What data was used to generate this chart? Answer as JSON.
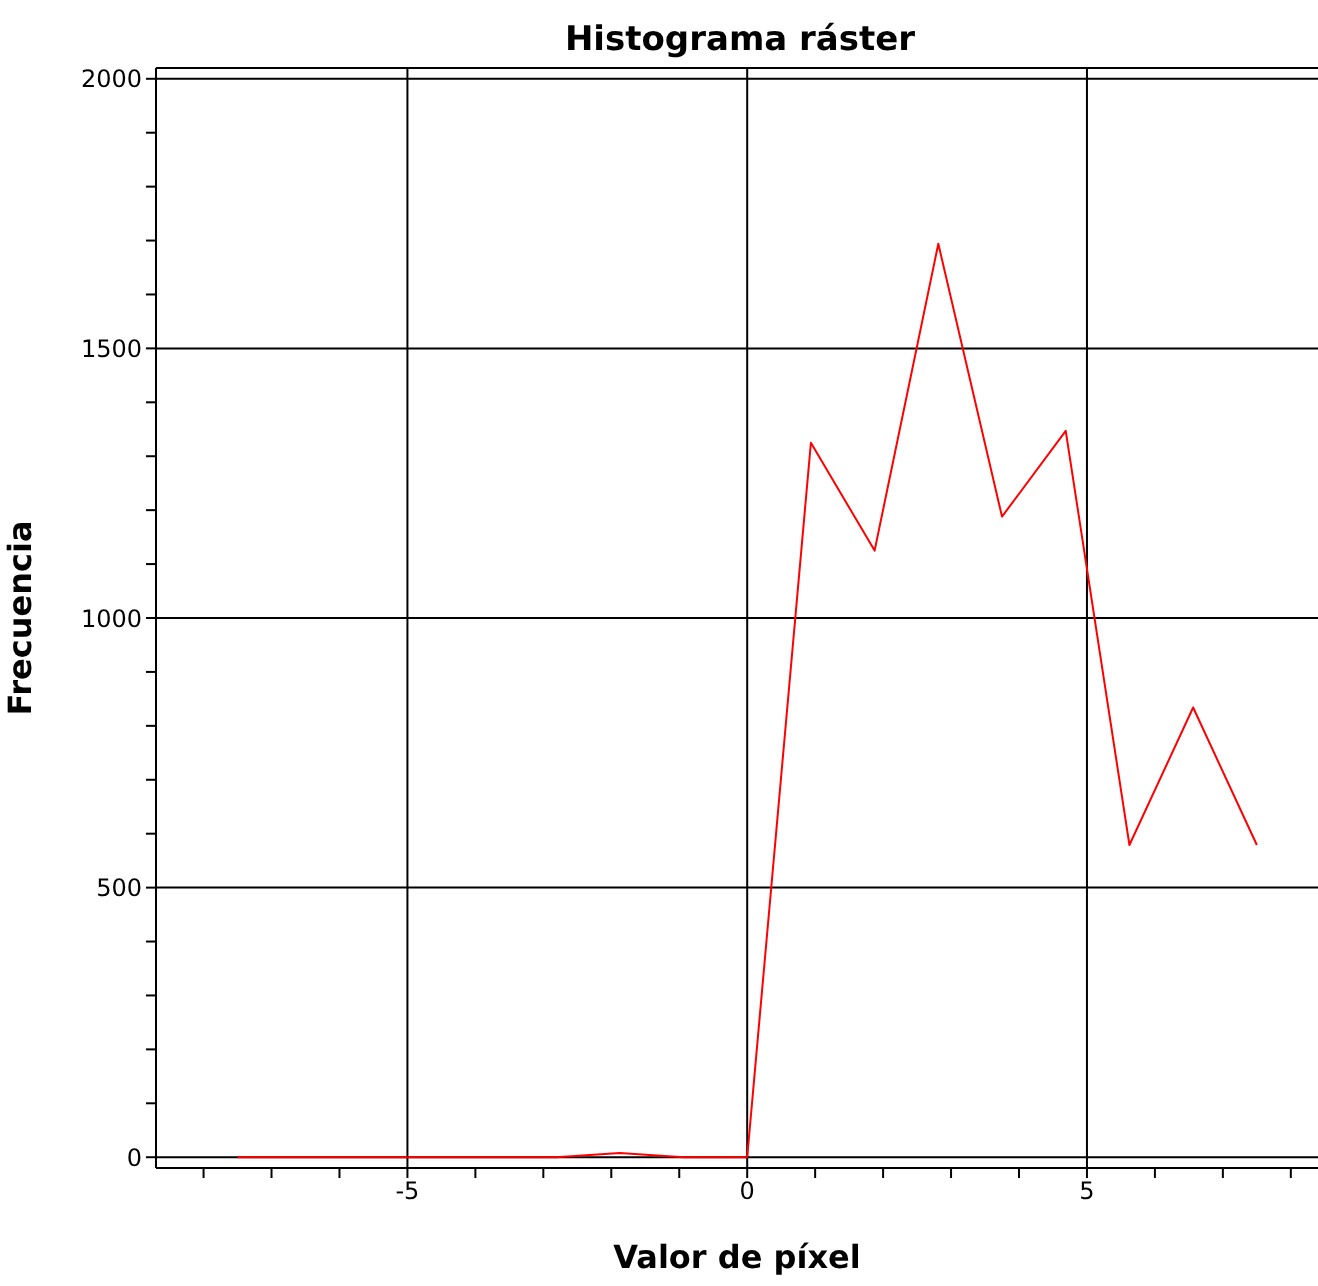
{
  "chart_data": {
    "type": "line",
    "title": "Histograma ráster",
    "xlabel": "Valor de píxel",
    "ylabel": "Frecuencia",
    "x": [
      -7.5,
      -6.5625,
      -5.625,
      -4.6875,
      -3.75,
      -2.8125,
      -1.875,
      -0.9375,
      0,
      0.9375,
      1.875,
      2.8125,
      3.75,
      4.6875,
      5.625,
      6.5625,
      7.5
    ],
    "series": [
      {
        "color": "#ff0000",
        "values": [
          0,
          0,
          0,
          0,
          0,
          0,
          8,
          0,
          0,
          1325,
          1125,
          1694,
          1188,
          1347,
          579,
          834,
          579
        ]
      }
    ],
    "xlim": [
      -8.7,
      8.4
    ],
    "xticks": [
      {
        "value": -8,
        "label": null
      },
      {
        "value": -7,
        "label": null
      },
      {
        "value": -6,
        "label": null
      },
      -5,
      {
        "value": -4,
        "label": null
      },
      {
        "value": -3,
        "label": null
      },
      {
        "value": -2,
        "label": null
      },
      {
        "value": -1,
        "label": null
      },
      0,
      {
        "value": 1,
        "label": null
      },
      {
        "value": 2,
        "label": null
      },
      {
        "value": 3,
        "label": null
      },
      {
        "value": 4,
        "label": null
      },
      5,
      {
        "value": 6,
        "label": null
      },
      {
        "value": 7,
        "label": null
      },
      {
        "value": 8,
        "label": null
      }
    ],
    "ylim": [
      -20,
      2020
    ],
    "yticks": [
      0,
      {
        "value": 100,
        "label": null
      },
      {
        "value": 200,
        "label": null
      },
      {
        "value": 300,
        "label": null
      },
      {
        "value": 400,
        "label": null
      },
      500,
      {
        "value": 600,
        "label": null
      },
      {
        "value": 700,
        "label": null
      },
      {
        "value": 800,
        "label": null
      },
      {
        "value": 900,
        "label": null
      },
      1000,
      {
        "value": 1100,
        "label": null
      },
      {
        "value": 1200,
        "label": null
      },
      {
        "value": 1300,
        "label": null
      },
      {
        "value": 1400,
        "label": null
      },
      1500,
      {
        "value": 1600,
        "label": null
      },
      {
        "value": 1700,
        "label": null
      },
      {
        "value": 1800,
        "label": null
      },
      {
        "value": 1900,
        "label": null
      },
      2000
    ],
    "grid": true,
    "marker": "none",
    "line_style": "solid"
  }
}
